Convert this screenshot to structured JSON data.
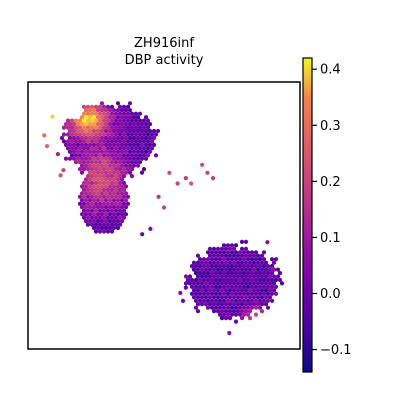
{
  "chart_data": {
    "type": "scatter",
    "title": "ZH916inf\nDBP activity",
    "title_lines": [
      "ZH916inf",
      "DBP activity"
    ],
    "xlabel": "",
    "ylabel": "",
    "x_ticks_shown": false,
    "y_ticks_shown": false,
    "grid": false,
    "colormap": "plasma",
    "colorbar": {
      "vmin": -0.14,
      "vmax": 0.42,
      "ticks": [
        -0.1,
        0.0,
        0.1,
        0.2,
        0.3,
        0.4
      ],
      "tick_labels": [
        "−0.1",
        "0.0",
        "0.1",
        "0.2",
        "0.3",
        "0.4"
      ],
      "placement": "right"
    },
    "regions": [
      {
        "name": "upper-left-cluster",
        "cx": 0.3,
        "cy": 0.22,
        "rx": 0.17,
        "ry": 0.14,
        "base": 0.02
      },
      {
        "name": "upper-left-hot-corner",
        "cx": 0.22,
        "cy": 0.14,
        "rx": 0.09,
        "ry": 0.08,
        "base": 0.36
      },
      {
        "name": "upper-left-mid-band",
        "cx": 0.27,
        "cy": 0.36,
        "rx": 0.11,
        "ry": 0.14,
        "base": 0.18
      },
      {
        "name": "lower-right-cluster",
        "cx": 0.76,
        "cy": 0.75,
        "rx": 0.17,
        "ry": 0.14,
        "base": 0.02
      },
      {
        "name": "lower-right-warm-tail",
        "cx": 0.84,
        "cy": 0.89,
        "rx": 0.06,
        "ry": 0.05,
        "base": 0.2
      }
    ]
  }
}
